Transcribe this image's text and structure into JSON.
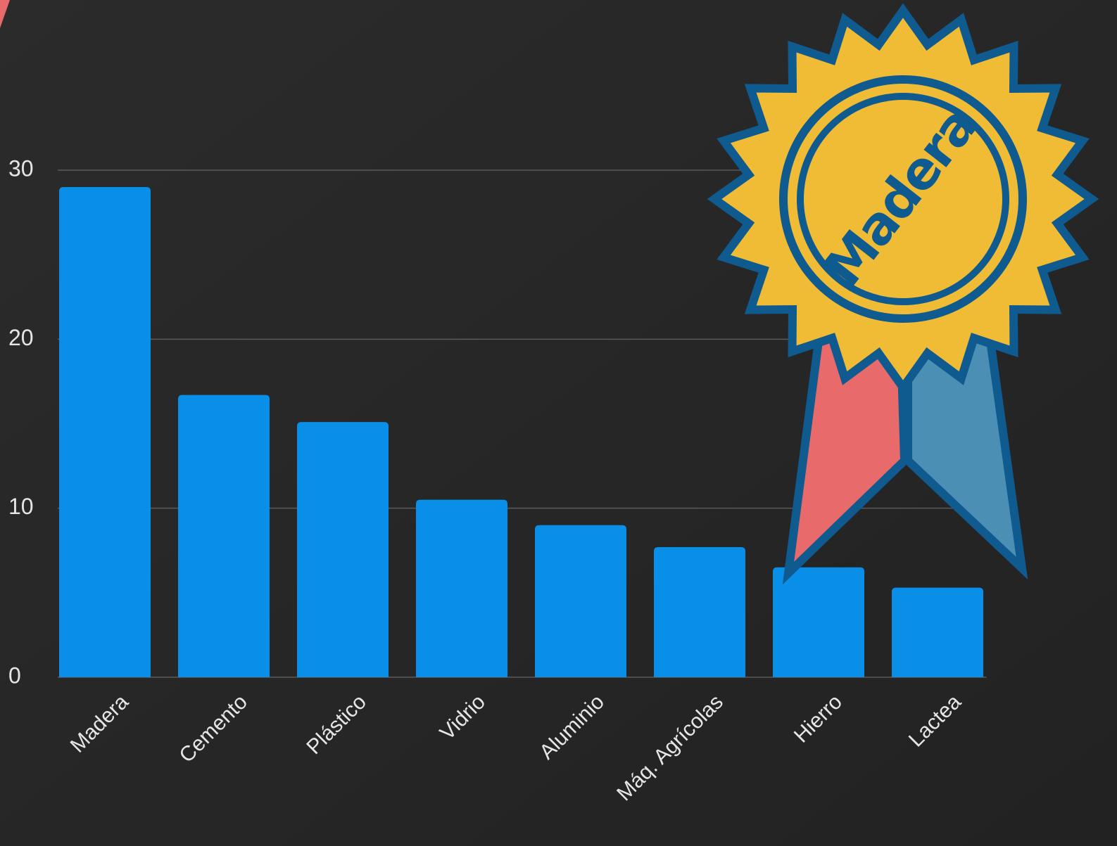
{
  "chart_data": {
    "type": "bar",
    "categories": [
      "Madera",
      "Cemento",
      "Plástico",
      "Vidrio",
      "Aluminio",
      "Máq. Agrícolas",
      "Hierro",
      "Lactea"
    ],
    "values": [
      29,
      16.7,
      15.1,
      10.5,
      9,
      7.7,
      6.5,
      5.3
    ],
    "color": "#0a8fe8",
    "ylim": [
      0,
      30
    ],
    "yticks": [
      0,
      10,
      20,
      30
    ],
    "grid": true,
    "annotation": "Madera"
  }
}
